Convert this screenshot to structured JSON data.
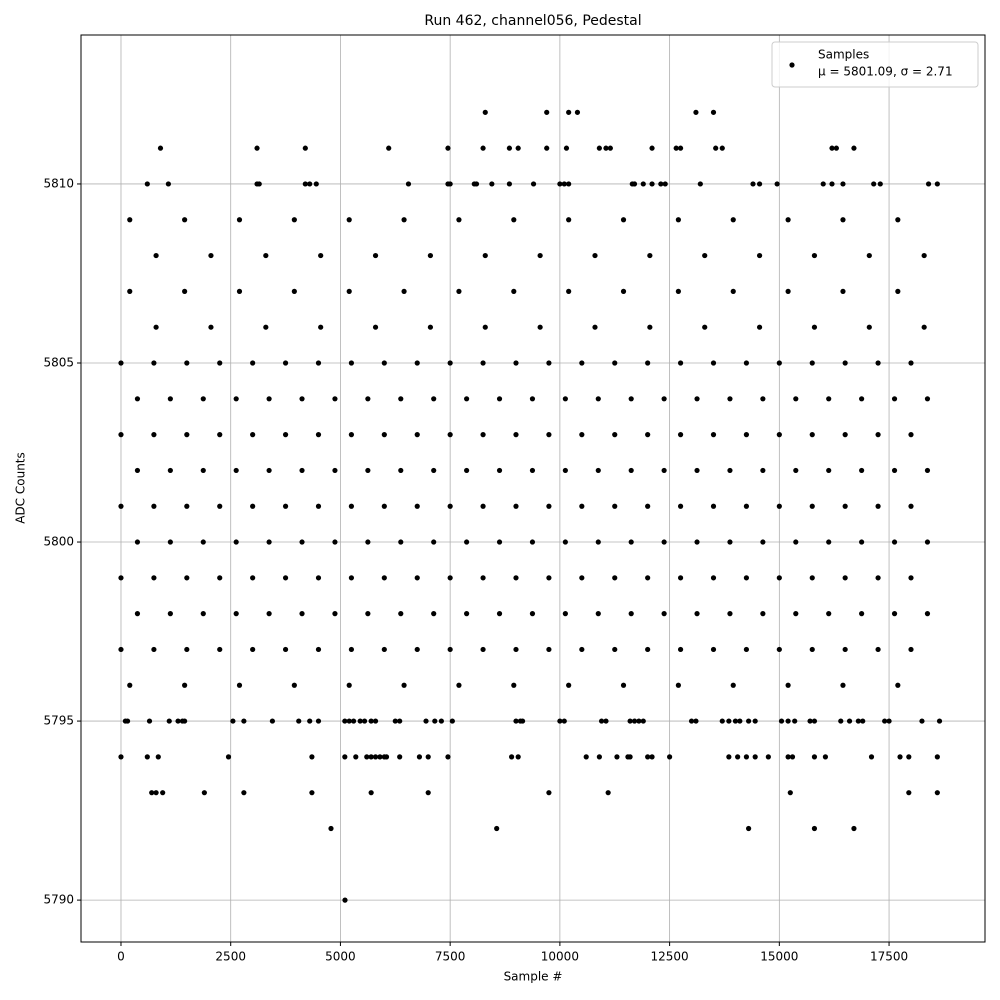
{
  "chart_data": {
    "type": "scatter",
    "title": "Run 462, channel056, Pedestal",
    "x_label": "Sample #",
    "y_label": "ADC Counts",
    "xlim": [
      -911,
      19686
    ],
    "ylim": [
      5788.83,
      5814.16
    ],
    "xticks": [
      0,
      2500,
      5000,
      7500,
      10000,
      12500,
      15000,
      17500
    ],
    "yticks": [
      5790,
      5795,
      5800,
      5805,
      5810
    ],
    "grid": true,
    "legend": "upper right",
    "legend_note": "μ = 5801.09, σ = 2.71",
    "series": [
      {
        "name": "Samples",
        "color": "#000000",
        "x": [
          8300,
          9700,
          10200,
          10400,
          13100,
          13500,
          900,
          3100,
          4200,
          6100,
          7450,
          8250,
          8850,
          9050,
          9700,
          10150,
          10900,
          11050,
          11150,
          12100,
          12650,
          12750,
          13550,
          13700,
          16200,
          16300,
          16700,
          600,
          1080,
          3100,
          3150,
          4200,
          4300,
          4450,
          6550,
          7450,
          7500,
          8050,
          8100,
          8450,
          8850,
          9400,
          10000,
          10100,
          10200,
          11650,
          11700,
          11900,
          12100,
          12300,
          12400,
          13200,
          14400,
          14550,
          14950,
          16000,
          16200,
          16450,
          17150,
          17300,
          18400,
          18600,
          200,
          1450,
          2700,
          3950,
          5200,
          6450,
          7700,
          8950,
          10200,
          11450,
          12700,
          13950,
          15200,
          16450,
          17700,
          800,
          2050,
          3300,
          4550,
          5800,
          7050,
          8300,
          9550,
          10800,
          12050,
          13300,
          14550,
          15800,
          17050,
          18300,
          200,
          1450,
          2700,
          3950,
          5200,
          6450,
          7700,
          8950,
          10200,
          11450,
          12700,
          13950,
          15200,
          16450,
          17700,
          800,
          2050,
          3300,
          4550,
          5800,
          7050,
          8300,
          9550,
          10800,
          12050,
          13300,
          14550,
          15800,
          17050,
          18300,
          0,
          750,
          1500,
          2250,
          3000,
          3750,
          4500,
          5250,
          6000,
          6750,
          7500,
          8250,
          9000,
          9750,
          10500,
          11250,
          12000,
          12750,
          13500,
          14250,
          15000,
          15750,
          16500,
          17250,
          18000,
          375,
          1125,
          1875,
          2625,
          3375,
          4125,
          4875,
          5625,
          6375,
          7125,
          7875,
          8625,
          9375,
          10125,
          10875,
          11625,
          12375,
          13125,
          13875,
          14625,
          15375,
          16125,
          16875,
          17625,
          18375,
          0,
          750,
          1500,
          2250,
          3000,
          3750,
          4500,
          5250,
          6000,
          6750,
          7500,
          8250,
          9000,
          9750,
          10500,
          11250,
          12000,
          12750,
          13500,
          14250,
          15000,
          15750,
          16500,
          17250,
          18000,
          375,
          1125,
          1875,
          2625,
          3375,
          4125,
          4875,
          5625,
          6375,
          7125,
          7875,
          8625,
          9375,
          10125,
          10875,
          11625,
          12375,
          13125,
          13875,
          14625,
          15375,
          16125,
          16875,
          17625,
          18375,
          0,
          750,
          1500,
          2250,
          3000,
          3750,
          4500,
          5250,
          6000,
          6750,
          7500,
          8250,
          9000,
          9750,
          10500,
          11250,
          12000,
          12750,
          13500,
          14250,
          15000,
          15750,
          16500,
          17250,
          18000,
          375,
          1125,
          1875,
          2625,
          3375,
          4125,
          4875,
          5625,
          6375,
          7125,
          7875,
          8625,
          9375,
          10125,
          10875,
          11625,
          12375,
          13125,
          13875,
          14625,
          15375,
          16125,
          16875,
          17625,
          18375,
          0,
          750,
          1500,
          2250,
          3000,
          3750,
          4500,
          5250,
          6000,
          6750,
          7500,
          8250,
          9000,
          9750,
          10500,
          11250,
          12000,
          12750,
          13500,
          14250,
          15000,
          15750,
          16500,
          17250,
          18000,
          375,
          1125,
          1875,
          2625,
          3375,
          4125,
          4875,
          5625,
          6375,
          7125,
          7875,
          8625,
          9375,
          10125,
          10875,
          11625,
          12375,
          13125,
          13875,
          14625,
          15375,
          16125,
          16875,
          17625,
          18375,
          0,
          750,
          1500,
          2250,
          3000,
          3750,
          4500,
          5250,
          6000,
          6750,
          7500,
          8250,
          9000,
          9750,
          10500,
          11250,
          12000,
          12750,
          13500,
          14250,
          15000,
          15750,
          16500,
          17250,
          18000,
          200,
          1450,
          2700,
          3950,
          5200,
          6450,
          7700,
          8950,
          10200,
          11450,
          12700,
          13950,
          15200,
          16450,
          17700,
          100,
          150,
          650,
          1100,
          1300,
          1400,
          1450,
          2550,
          2800,
          3450,
          4050,
          4300,
          4500,
          5100,
          5200,
          5300,
          5450,
          5550,
          5700,
          5800,
          6250,
          6350,
          6950,
          7150,
          7300,
          7550,
          9000,
          9100,
          9150,
          10000,
          10100,
          10950,
          11050,
          11600,
          11700,
          11800,
          11900,
          13000,
          13100,
          13700,
          13850,
          14000,
          14100,
          14300,
          14450,
          15050,
          15200,
          15350,
          15700,
          15800,
          16400,
          16600,
          16800,
          16900,
          17400,
          17500,
          18250,
          18650,
          0,
          600,
          850,
          2450,
          4350,
          5100,
          5350,
          5600,
          5700,
          5800,
          5900,
          6000,
          6050,
          6350,
          6800,
          7000,
          7450,
          8900,
          9050,
          10600,
          10900,
          11300,
          11550,
          11600,
          12000,
          12100,
          12500,
          13850,
          14050,
          14250,
          14450,
          14750,
          15200,
          15300,
          15800,
          16050,
          17100,
          17750,
          17950,
          18600,
          700,
          800,
          950,
          1900,
          2800,
          4350,
          5700,
          7000,
          9750,
          11100,
          15250,
          17950,
          18600,
          4785,
          8560,
          14300,
          15800,
          16700,
          5104
        ],
        "values": [
          5812,
          5812,
          5812,
          5812,
          5812,
          5812,
          5811,
          5811,
          5811,
          5811,
          5811,
          5811,
          5811,
          5811,
          5811,
          5811,
          5811,
          5811,
          5811,
          5811,
          5811,
          5811,
          5811,
          5811,
          5811,
          5811,
          5811,
          5810,
          5810,
          5810,
          5810,
          5810,
          5810,
          5810,
          5810,
          5810,
          5810,
          5810,
          5810,
          5810,
          5810,
          5810,
          5810,
          5810,
          5810,
          5810,
          5810,
          5810,
          5810,
          5810,
          5810,
          5810,
          5810,
          5810,
          5810,
          5810,
          5810,
          5810,
          5810,
          5810,
          5810,
          5810,
          5809,
          5809,
          5809,
          5809,
          5809,
          5809,
          5809,
          5809,
          5809,
          5809,
          5809,
          5809,
          5809,
          5809,
          5809,
          5808,
          5808,
          5808,
          5808,
          5808,
          5808,
          5808,
          5808,
          5808,
          5808,
          5808,
          5808,
          5808,
          5808,
          5808,
          5807,
          5807,
          5807,
          5807,
          5807,
          5807,
          5807,
          5807,
          5807,
          5807,
          5807,
          5807,
          5807,
          5807,
          5807,
          5806,
          5806,
          5806,
          5806,
          5806,
          5806,
          5806,
          5806,
          5806,
          5806,
          5806,
          5806,
          5806,
          5806,
          5806,
          5805,
          5805,
          5805,
          5805,
          5805,
          5805,
          5805,
          5805,
          5805,
          5805,
          5805,
          5805,
          5805,
          5805,
          5805,
          5805,
          5805,
          5805,
          5805,
          5805,
          5805,
          5805,
          5805,
          5805,
          5805,
          5804,
          5804,
          5804,
          5804,
          5804,
          5804,
          5804,
          5804,
          5804,
          5804,
          5804,
          5804,
          5804,
          5804,
          5804,
          5804,
          5804,
          5804,
          5804,
          5804,
          5804,
          5804,
          5804,
          5804,
          5804,
          5803,
          5803,
          5803,
          5803,
          5803,
          5803,
          5803,
          5803,
          5803,
          5803,
          5803,
          5803,
          5803,
          5803,
          5803,
          5803,
          5803,
          5803,
          5803,
          5803,
          5803,
          5803,
          5803,
          5803,
          5803,
          5802,
          5802,
          5802,
          5802,
          5802,
          5802,
          5802,
          5802,
          5802,
          5802,
          5802,
          5802,
          5802,
          5802,
          5802,
          5802,
          5802,
          5802,
          5802,
          5802,
          5802,
          5802,
          5802,
          5802,
          5802,
          5801,
          5801,
          5801,
          5801,
          5801,
          5801,
          5801,
          5801,
          5801,
          5801,
          5801,
          5801,
          5801,
          5801,
          5801,
          5801,
          5801,
          5801,
          5801,
          5801,
          5801,
          5801,
          5801,
          5801,
          5801,
          5800,
          5800,
          5800,
          5800,
          5800,
          5800,
          5800,
          5800,
          5800,
          5800,
          5800,
          5800,
          5800,
          5800,
          5800,
          5800,
          5800,
          5800,
          5800,
          5800,
          5800,
          5800,
          5800,
          5800,
          5800,
          5799,
          5799,
          5799,
          5799,
          5799,
          5799,
          5799,
          5799,
          5799,
          5799,
          5799,
          5799,
          5799,
          5799,
          5799,
          5799,
          5799,
          5799,
          5799,
          5799,
          5799,
          5799,
          5799,
          5799,
          5799,
          5798,
          5798,
          5798,
          5798,
          5798,
          5798,
          5798,
          5798,
          5798,
          5798,
          5798,
          5798,
          5798,
          5798,
          5798,
          5798,
          5798,
          5798,
          5798,
          5798,
          5798,
          5798,
          5798,
          5798,
          5798,
          5797,
          5797,
          5797,
          5797,
          5797,
          5797,
          5797,
          5797,
          5797,
          5797,
          5797,
          5797,
          5797,
          5797,
          5797,
          5797,
          5797,
          5797,
          5797,
          5797,
          5797,
          5797,
          5797,
          5797,
          5797,
          5796,
          5796,
          5796,
          5796,
          5796,
          5796,
          5796,
          5796,
          5796,
          5796,
          5796,
          5796,
          5796,
          5796,
          5796,
          5795,
          5795,
          5795,
          5795,
          5795,
          5795,
          5795,
          5795,
          5795,
          5795,
          5795,
          5795,
          5795,
          5795,
          5795,
          5795,
          5795,
          5795,
          5795,
          5795,
          5795,
          5795,
          5795,
          5795,
          5795,
          5795,
          5795,
          5795,
          5795,
          5795,
          5795,
          5795,
          5795,
          5795,
          5795,
          5795,
          5795,
          5795,
          5795,
          5795,
          5795,
          5795,
          5795,
          5795,
          5795,
          5795,
          5795,
          5795,
          5795,
          5795,
          5795,
          5795,
          5795,
          5795,
          5795,
          5795,
          5795,
          5795,
          5794,
          5794,
          5794,
          5794,
          5794,
          5794,
          5794,
          5794,
          5794,
          5794,
          5794,
          5794,
          5794,
          5794,
          5794,
          5794,
          5794,
          5794,
          5794,
          5794,
          5794,
          5794,
          5794,
          5794,
          5794,
          5794,
          5794,
          5794,
          5794,
          5794,
          5794,
          5794,
          5794,
          5794,
          5794,
          5794,
          5794,
          5794,
          5794,
          5794,
          5793,
          5793,
          5793,
          5793,
          5793,
          5793,
          5793,
          5793,
          5793,
          5793,
          5793,
          5793,
          5793,
          5792,
          5792,
          5792,
          5792,
          5792,
          5790
        ]
      }
    ]
  }
}
